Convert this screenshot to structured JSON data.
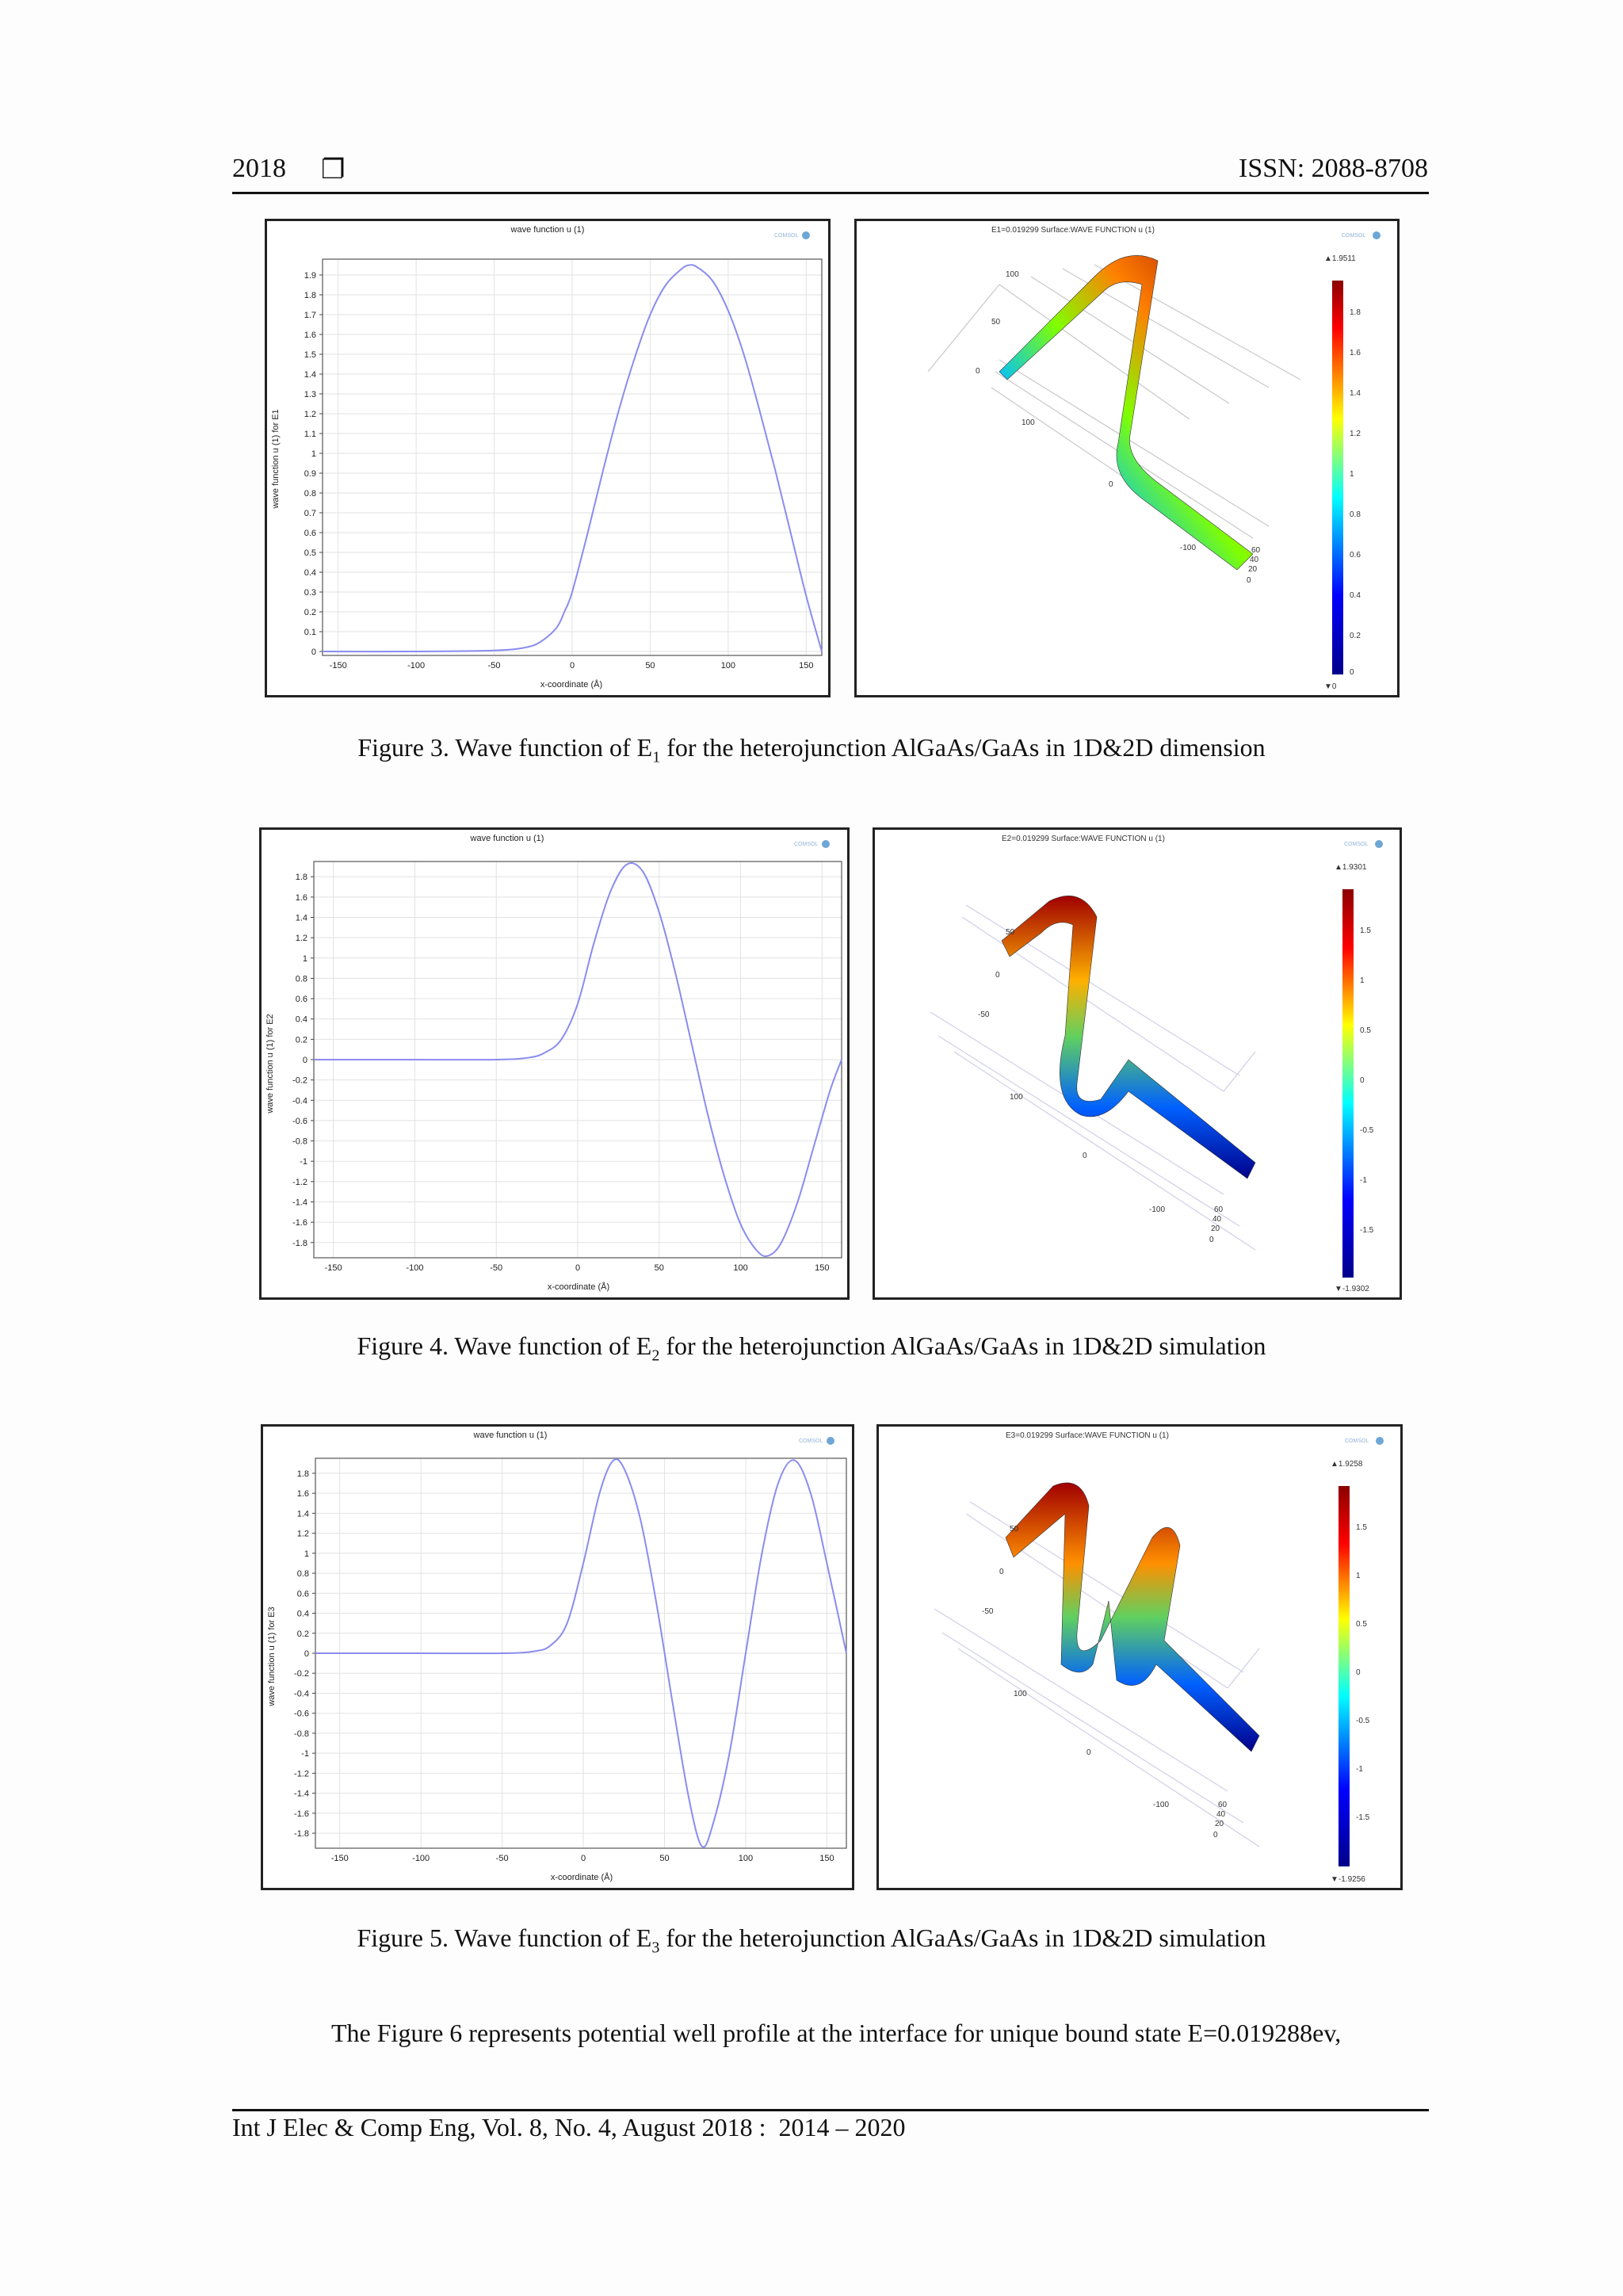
{
  "header": {
    "page_number": "2018",
    "box_glyph": "❐",
    "issn": "ISSN: 2088-8708"
  },
  "figures": [
    {
      "id": "fig3",
      "caption_pre": "Figure 3. Wave function of E",
      "caption_sub": "1",
      "caption_post": " for the heterojunction AlGaAs/GaAs in 1D&2D dimension",
      "plot_1d": {
        "title": "wave function u (1)",
        "ylabel": "wave function u (1) for E1",
        "xlabel": "x-coordinate (Å)"
      },
      "plot_2d": {
        "title": "E1=0.019299 Surface:WAVE FUNCTION u (1)",
        "max_label": "▲1.9511",
        "min_label": "▼0",
        "scale_ticks": [
          "1.8",
          "1.6",
          "1.4",
          "1.2",
          "1",
          "0.8",
          "0.6",
          "0.4",
          "0.2",
          "0"
        ],
        "axis_labels": [
          "100",
          "50",
          "0",
          "100",
          "0",
          "-100",
          "60",
          "40",
          "20",
          "0"
        ]
      }
    },
    {
      "id": "fig4",
      "caption_pre": "Figure 4. Wave function of E",
      "caption_sub": "2",
      "caption_post": " for the heterojunction AlGaAs/GaAs in 1D&2D simulation",
      "plot_1d": {
        "title": "wave function u (1)",
        "ylabel": "wave function u (1) for E2",
        "xlabel": "x-coordinate (Å)"
      },
      "plot_2d": {
        "title": "E2=0.019299 Surface:WAVE FUNCTION u (1)",
        "max_label": "▲1.9301",
        "min_label": "▼-1.9302",
        "scale_ticks": [
          "1.5",
          "1",
          "0.5",
          "0",
          "-0.5",
          "-1",
          "-1.5"
        ],
        "axis_labels": [
          "50",
          "0",
          "-50",
          "100",
          "0",
          "-100",
          "60",
          "40",
          "20",
          "0"
        ]
      }
    },
    {
      "id": "fig5",
      "caption_pre": "Figure 5. Wave function of E",
      "caption_sub": "3",
      "caption_post": " for the heterojunction AlGaAs/GaAs in 1D&2D simulation",
      "plot_1d": {
        "title": "wave function u (1)",
        "ylabel": "wave function u (1) for E3",
        "xlabel": "x-coordinate (Å)"
      },
      "plot_2d": {
        "title": "E3=0.019299 Surface:WAVE FUNCTION u (1)",
        "max_label": "▲1.9258",
        "min_label": "▼-1.9256",
        "scale_ticks": [
          "1.5",
          "1",
          "0.5",
          "0",
          "-0.5",
          "-1",
          "-1.5"
        ],
        "axis_labels": [
          "50",
          "0",
          "-50",
          "100",
          "0",
          "-100",
          "60",
          "40",
          "20",
          "0"
        ]
      }
    }
  ],
  "body_text": "The Figure 6 represents potential well profile at the interface for unique bound state E=0.019288ev,",
  "footer": {
    "citation": "Int J Elec & Comp Eng, Vol. 8, No. 4, August 2018 :  2014 – 2020"
  },
  "colors": {
    "curve": "#8a8cf0",
    "grid": "#e2e2e2",
    "frame": "#222222"
  },
  "chart_data": [
    {
      "type": "line",
      "title": "wave function u (1)",
      "xlabel": "x-coordinate (Å)",
      "ylabel": "wave function u (1) for E1",
      "xlim": [
        -160,
        160
      ],
      "ylim": [
        -0.02,
        1.98
      ],
      "xticks": [
        -150,
        -100,
        -50,
        0,
        50,
        100,
        150
      ],
      "yticks": [
        0,
        0.1,
        0.2,
        0.3,
        0.4,
        0.5,
        0.6,
        0.7,
        0.8,
        0.9,
        1,
        1.1,
        1.2,
        1.3,
        1.4,
        1.5,
        1.6,
        1.7,
        1.8,
        1.9
      ],
      "ytick_labels": [
        "0",
        "0.1",
        "0.2",
        "0.3",
        "0.4",
        "0.5",
        "0.6",
        "0.7",
        "0.8",
        "0.9",
        "1",
        "1.1",
        "1.2",
        "1.3",
        "1.4",
        "1.5",
        "1.6",
        "1.7",
        "1.8",
        "1.9"
      ],
      "x": [
        -160,
        -100,
        -50,
        -30,
        -20,
        -10,
        -5,
        0,
        10,
        20,
        30,
        40,
        50,
        60,
        70,
        75,
        80,
        90,
        100,
        110,
        120,
        130,
        140,
        150,
        160
      ],
      "y": [
        0,
        0,
        0.005,
        0.02,
        0.05,
        0.12,
        0.2,
        0.3,
        0.6,
        0.92,
        1.22,
        1.48,
        1.7,
        1.85,
        1.93,
        1.95,
        1.94,
        1.87,
        1.72,
        1.5,
        1.22,
        0.92,
        0.6,
        0.28,
        0
      ]
    },
    {
      "type": "line",
      "title": "wave function u (1)",
      "xlabel": "x-coordinate (Å)",
      "ylabel": "wave function u (1) for E2",
      "xlim": [
        -162,
        162
      ],
      "ylim": [
        -1.95,
        1.95
      ],
      "xticks": [
        -150,
        -100,
        -50,
        0,
        50,
        100,
        150
      ],
      "yticks": [
        1.8,
        1.6,
        1.4,
        1.2,
        1,
        0.8,
        0.6,
        0.4,
        0.2,
        0,
        -0.2,
        -0.4,
        -0.6,
        -0.8,
        -1,
        -1.2,
        -1.4,
        -1.6,
        -1.8
      ],
      "ytick_labels": [
        "1.8",
        "1.6",
        "1.4",
        "1.2",
        "1",
        "0.8",
        "0.6",
        "0.4",
        "0.2",
        "0",
        "-0.2",
        "-0.4",
        "-0.6",
        "-0.8",
        "-1",
        "-1.2",
        "-1.4",
        "-1.6",
        "-1.8"
      ],
      "x": [
        -162,
        -100,
        -50,
        -30,
        -20,
        -10,
        0,
        10,
        20,
        30,
        40,
        50,
        60,
        70,
        80,
        90,
        100,
        110,
        117,
        125,
        135,
        145,
        155,
        162
      ],
      "y": [
        0,
        0,
        0,
        0.02,
        0.07,
        0.2,
        0.55,
        1.15,
        1.65,
        1.92,
        1.85,
        1.45,
        0.85,
        0.15,
        -0.55,
        -1.15,
        -1.62,
        -1.88,
        -1.93,
        -1.8,
        -1.4,
        -0.85,
        -0.3,
        0
      ]
    },
    {
      "type": "line",
      "title": "wave function u (1)",
      "xlabel": "x-coordinate (Å)",
      "ylabel": "wave function u (1) for E3",
      "xlim": [
        -165,
        162
      ],
      "ylim": [
        -1.95,
        1.95
      ],
      "xticks": [
        -150,
        -100,
        -50,
        0,
        50,
        100,
        150
      ],
      "yticks": [
        1.8,
        1.6,
        1.4,
        1.2,
        1,
        0.8,
        0.6,
        0.4,
        0.2,
        0,
        -0.2,
        -0.4,
        -0.6,
        -0.8,
        -1,
        -1.2,
        -1.4,
        -1.6,
        -1.8
      ],
      "ytick_labels": [
        "1.8",
        "1.6",
        "1.4",
        "1.2",
        "1",
        "0.8",
        "0.6",
        "0.4",
        "0.2",
        "0",
        "-0.2",
        "-0.4",
        "-0.6",
        "-0.8",
        "-1",
        "-1.2",
        "-1.4",
        "-1.6",
        "-1.8"
      ],
      "x": [
        -165,
        -100,
        -50,
        -30,
        -20,
        -10,
        0,
        10,
        18,
        25,
        35,
        45,
        55,
        65,
        73,
        80,
        90,
        100,
        110,
        120,
        130,
        140,
        150,
        162
      ],
      "y": [
        0,
        0,
        0,
        0.02,
        0.08,
        0.3,
        0.9,
        1.6,
        1.92,
        1.85,
        1.35,
        0.5,
        -0.5,
        -1.45,
        -1.93,
        -1.7,
        -1.0,
        0.0,
        1.0,
        1.7,
        1.93,
        1.6,
        0.9,
        0
      ]
    }
  ]
}
